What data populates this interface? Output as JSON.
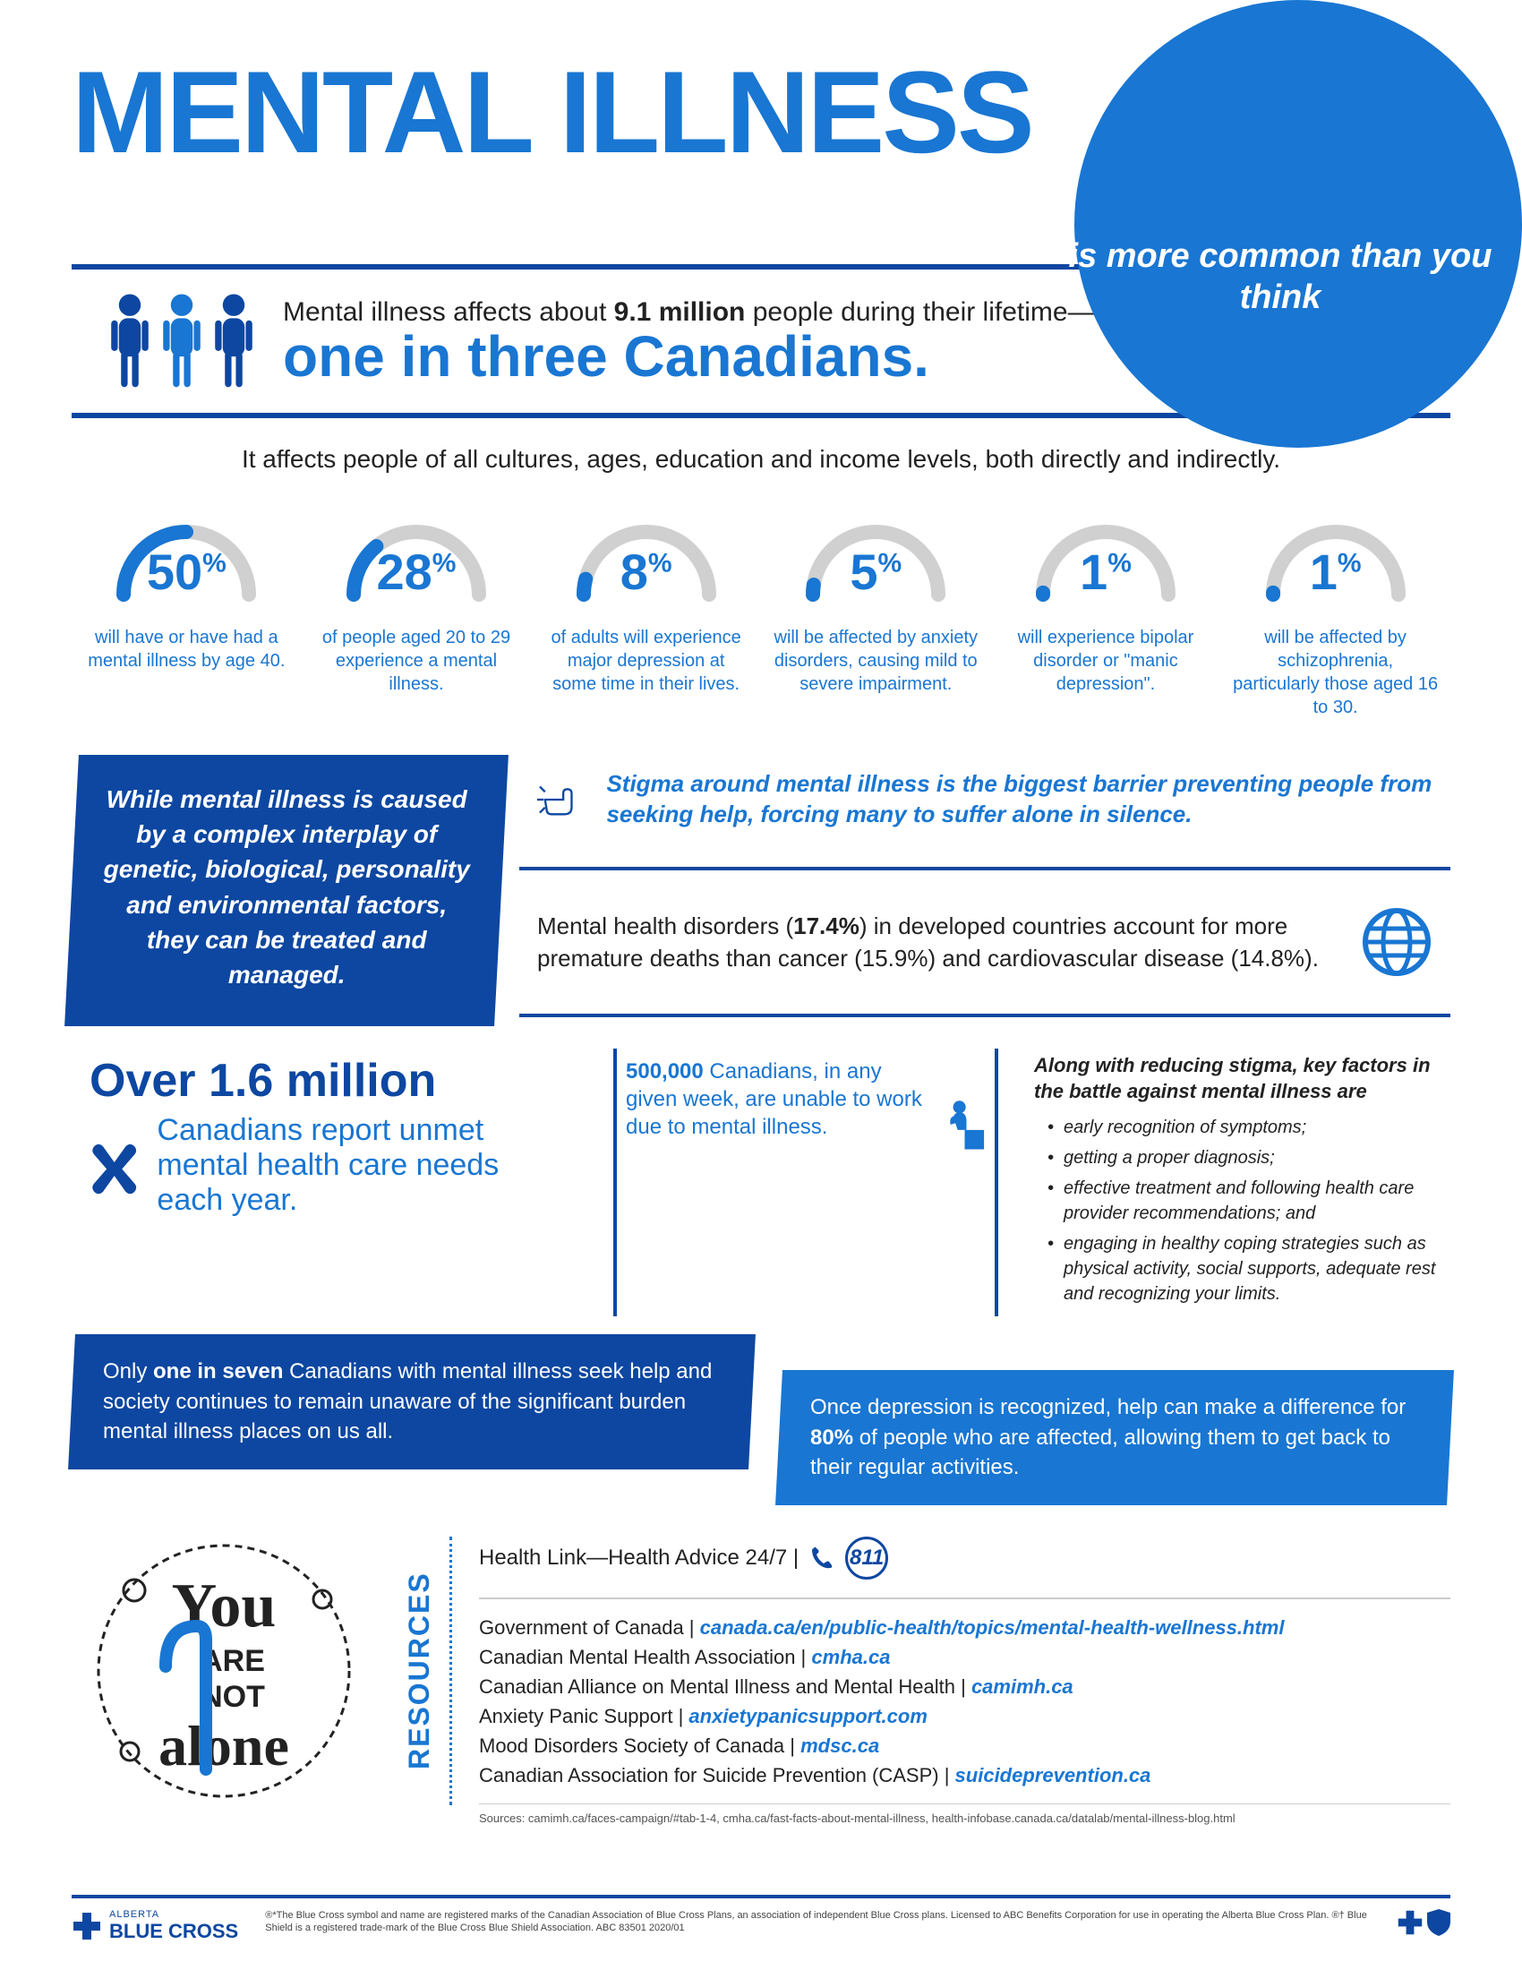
{
  "colors": {
    "primary": "#1976d2",
    "dark": "#0d47a1",
    "text": "#222",
    "grey": "#d0d0d0"
  },
  "header": {
    "title": "MENTAL ILLNESS",
    "badge": "is more common than you think"
  },
  "s1": {
    "line1_a": "Mental illness affects about ",
    "line1_b": "9.1 million",
    "line1_c": " people during their lifetime—that's",
    "line2": "one in three Canadians."
  },
  "s2": {
    "intro": "It affects people of all cultures, ages, education and income levels, both directly and indirectly."
  },
  "stats": [
    {
      "pct": "50",
      "fill": 50,
      "desc": "will have or have had a mental illness by age 40."
    },
    {
      "pct": "28",
      "fill": 28,
      "desc": "of people aged 20 to 29 experience a mental illness."
    },
    {
      "pct": "8",
      "fill": 8,
      "desc": "of adults will experience major depression at some time in their lives."
    },
    {
      "pct": "5",
      "fill": 5,
      "desc": "will be affected by anxiety disorders, causing mild to severe impairment."
    },
    {
      "pct": "1",
      "fill": 1,
      "desc": "will experience bipolar disorder or \"manic depression\"."
    },
    {
      "pct": "1",
      "fill": 1,
      "desc": "will be affected by schizophrenia, particularly those aged 16 to 30."
    }
  ],
  "bluebox": "While mental illness is caused by a complex interplay of genetic, biological, personality and environmental factors, they can be treated and managed.",
  "stigma": "Stigma around mental illness is the biggest barrier preventing people from seeking help, forcing many to suffer alone in silence.",
  "deaths_a": "Mental health disorders (",
  "deaths_b": "17.4%",
  "deaths_c": ") in developed countries account for more premature deaths than cancer (15.9%) and cardiovascular disease (14.8%).",
  "unmet": {
    "title": "Over 1.6 million",
    "text": "Canadians report unmet mental health care needs each year."
  },
  "work": {
    "b": "500,000",
    "rest": " Canadians, in any given week, are unable to work due to mental illness."
  },
  "factors": {
    "title": "Along with reducing stigma, key factors in the battle against mental illness are",
    "items": [
      "early recognition of symptoms;",
      "getting a proper diagnosis;",
      "effective treatment and following health care provider recommendations; and",
      "engaging in healthy coping strategies such as physical activity, social supports, adequate rest and recognizing your limits."
    ]
  },
  "darkslab_a": "Only ",
  "darkslab_b": "one in seven",
  "darkslab_c": " Canadians with mental illness seek help and society continues to remain unaware of the significant burden mental illness places on us all.",
  "lightslab_a": "Once depression is recognized, help can make a difference for ",
  "lightslab_b": "80%",
  "lightslab_c": " of people who are affected, allowing them to get back to their regular activities.",
  "resources": {
    "label": "RESOURCES",
    "health": "Health Link—Health Advice 24/7 | ",
    "phone": "811",
    "items": [
      {
        "name": "Government of Canada",
        "url": "canada.ca/en/public-health/topics/mental-health-wellness.html"
      },
      {
        "name": "Canadian Mental Health Association",
        "url": "cmha.ca"
      },
      {
        "name": "Canadian Alliance on Mental Illness and Mental Health",
        "url": "camimh.ca"
      },
      {
        "name": "Anxiety Panic Support",
        "url": "anxietypanicsupport.com"
      },
      {
        "name": "Mood Disorders Society of Canada",
        "url": "mdsc.ca"
      },
      {
        "name": "Canadian Association for Suicide Prevention (CASP)",
        "url": "suicideprevention.ca"
      }
    ],
    "sources": "Sources: camimh.ca/faces-campaign/#tab-1-4, cmha.ca/fast-facts-about-mental-illness, health-infobase.canada.ca/datalab/mental-illness-blog.html"
  },
  "notalone": {
    "l1": "You",
    "l2": "ARE",
    "l3": "NOT",
    "l4": "alone"
  },
  "footer": {
    "brand_small": "ALBERTA",
    "brand": "BLUE CROSS",
    "legal": "®*The Blue Cross symbol and name are registered marks of the Canadian Association of Blue Cross Plans, an association of independent Blue Cross plans. Licensed to ABC Benefits Corporation for use in operating the Alberta Blue Cross Plan. ®† Blue Shield is a registered trade-mark of the Blue Cross Blue Shield Association. ABC 83501 2020/01"
  }
}
